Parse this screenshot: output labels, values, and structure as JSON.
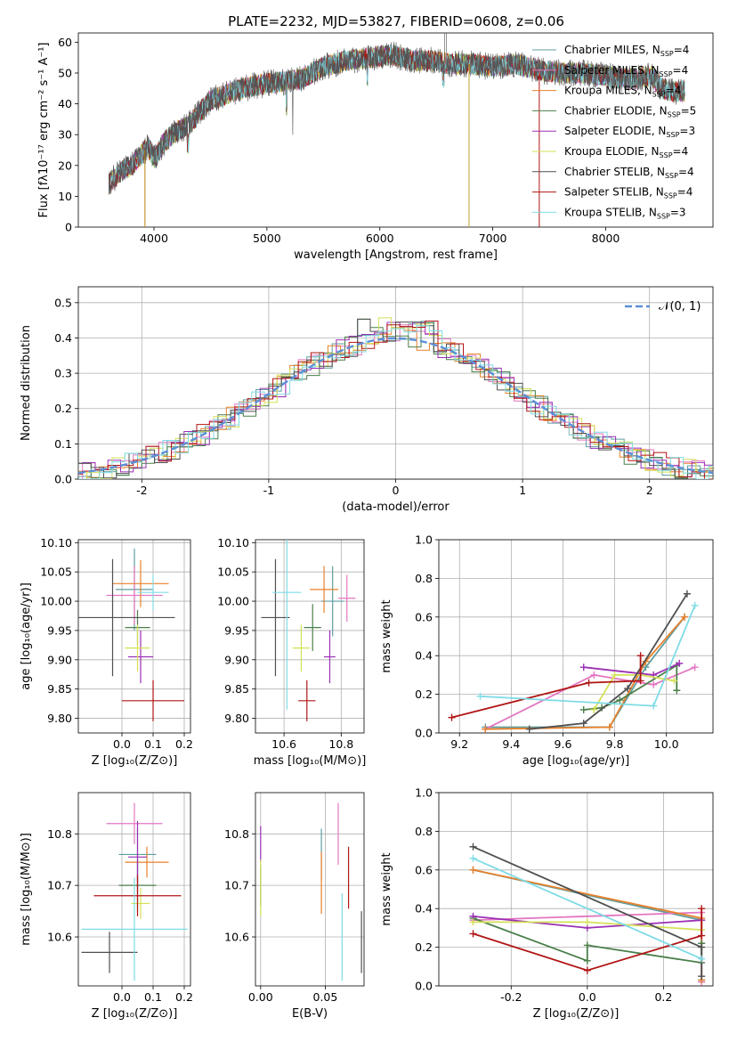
{
  "title": "PLATE=2232, MJD=53827, FIBERID=0608, z=0.06",
  "colors": {
    "Chabrier MILES": "#5f9ea0",
    "Salpeter MILES": "#e377c2",
    "Kroupa MILES": "#e8802a",
    "Chabrier ELODIE": "#4a7f4a",
    "Salpeter ELODIE": "#9b30b5",
    "Kroupa ELODIE": "#d4e157",
    "Chabrier STELIB": "#505050",
    "Salpeter STELIB": "#b01515",
    "Kroupa STELIB": "#7fdbe6",
    "gaussian": "#5b8fd6"
  },
  "chart_data": [
    {
      "id": "spectrum",
      "type": "line",
      "title": "PLATE=2232, MJD=53827, FIBERID=0608, z=0.06",
      "xlabel": "wavelength [Angstrom, rest frame]",
      "ylabel": "Flux [fλ10⁻¹⁷ erg cm⁻² s⁻¹ A⁻¹]",
      "xlim": [
        3330,
        8950
      ],
      "ylim": [
        0,
        63
      ],
      "xticks": [
        4000,
        5000,
        6000,
        7000,
        8000
      ],
      "yticks": [
        0,
        10,
        20,
        30,
        40,
        50,
        60
      ],
      "legend": [
        {
          "name": "Chabrier MILES",
          "nssp": "4"
        },
        {
          "name": "Salpeter MILES",
          "nssp": "4"
        },
        {
          "name": "Kroupa MILES",
          "nssp": "4"
        },
        {
          "name": "Chabrier ELODIE",
          "nssp": "5"
        },
        {
          "name": "Salpeter ELODIE",
          "nssp": "3"
        },
        {
          "name": "Kroupa ELODIE",
          "nssp": "4"
        },
        {
          "name": "Chabrier STELIB",
          "nssp": "4"
        },
        {
          "name": "Salpeter STELIB",
          "nssp": "4"
        },
        {
          "name": "Kroupa STELIB",
          "nssp": "3"
        }
      ],
      "legend_position": "right",
      "continuum": {
        "x": [
          3600,
          3700,
          3800,
          3900,
          3950,
          4000,
          4100,
          4200,
          4300,
          4400,
          4500,
          4700,
          4900,
          5100,
          5300,
          5500,
          5700,
          5900,
          6100,
          6300,
          6500,
          6600,
          6800,
          7000,
          7200,
          7400,
          7600,
          7800,
          8000,
          8200,
          8400,
          8500,
          8600,
          8700
        ],
        "y": [
          14,
          18,
          20,
          24,
          26,
          22,
          28,
          31,
          33,
          37,
          41,
          44,
          46,
          47,
          48,
          52,
          54,
          55,
          56,
          54,
          54,
          53,
          53,
          52,
          53,
          51,
          50,
          50,
          49,
          48,
          49,
          45,
          44,
          44
        ]
      }
    },
    {
      "id": "residuals",
      "type": "line",
      "xlabel": "(data-model)/error",
      "ylabel": "Normed distribution",
      "xlim": [
        -2.5,
        2.5
      ],
      "ylim": [
        0,
        0.545
      ],
      "xticks": [
        -2,
        -1,
        0,
        1,
        2
      ],
      "yticks": [
        0.0,
        0.1,
        0.2,
        0.3,
        0.4,
        0.5
      ],
      "legend": [
        "𝒩(0, 1)"
      ],
      "legend_position": "top-right"
    },
    {
      "id": "age_vs_Z",
      "type": "scatter",
      "xlabel": "Z [log₁₀(Z/Z⊙)]",
      "ylabel": "age  [log₁₀(age/yr)]",
      "xlim": [
        -0.14,
        0.22
      ],
      "ylim": [
        9.775,
        10.105
      ],
      "xticks": [
        0.0,
        0.1,
        0.2
      ],
      "yticks": [
        9.8,
        9.85,
        9.9,
        9.95,
        10.0,
        10.05,
        10.1
      ],
      "points": [
        {
          "series": "Chabrier MILES",
          "x": 0.04,
          "y": 10.02,
          "xerr": 0.06,
          "yerr": 0.07
        },
        {
          "series": "Salpeter MILES",
          "x": 0.04,
          "y": 10.01,
          "xerr": 0.09,
          "yerr": 0.05
        },
        {
          "series": "Kroupa MILES",
          "x": 0.06,
          "y": 10.03,
          "xerr": 0.09,
          "yerr": 0.04
        },
        {
          "series": "Chabrier ELODIE",
          "x": 0.05,
          "y": 9.955,
          "xerr": 0.04,
          "yerr": 0.03
        },
        {
          "series": "Salpeter ELODIE",
          "x": 0.06,
          "y": 9.905,
          "xerr": 0.04,
          "yerr": 0.045
        },
        {
          "series": "Kroupa ELODIE",
          "x": 0.05,
          "y": 9.92,
          "xerr": 0.04,
          "yerr": 0.04
        },
        {
          "series": "Chabrier STELIB",
          "x": -0.03,
          "y": 9.972,
          "xerr": 0.2,
          "yerr": 0.1
        },
        {
          "series": "Salpeter STELIB",
          "x": 0.1,
          "y": 9.83,
          "xerr": 0.1,
          "yerr": 0.035
        },
        {
          "series": "Kroupa STELIB",
          "x": 0.1,
          "y": 10.015,
          "xerr": 0.05,
          "yerr": 0.03
        }
      ]
    },
    {
      "id": "age_vs_mass",
      "type": "scatter",
      "xlabel": "mass [log₁₀(M/M⊙)]",
      "xlim": [
        10.5,
        10.88
      ],
      "ylim": [
        9.775,
        10.105
      ],
      "xticks": [
        10.6,
        10.8
      ],
      "yticks": [
        9.8,
        9.85,
        9.9,
        9.95,
        10.0,
        10.05,
        10.1
      ],
      "points": [
        {
          "series": "Chabrier MILES",
          "x": 10.77,
          "y": 10.0,
          "xerr": 0.04,
          "yerr": 0.06
        },
        {
          "series": "Salpeter MILES",
          "x": 10.82,
          "y": 10.005,
          "xerr": 0.03,
          "yerr": 0.04
        },
        {
          "series": "Kroupa MILES",
          "x": 10.74,
          "y": 10.02,
          "xerr": 0.05,
          "yerr": 0.04
        },
        {
          "series": "Chabrier ELODIE",
          "x": 10.7,
          "y": 9.955,
          "xerr": 0.03,
          "yerr": 0.04
        },
        {
          "series": "Salpeter ELODIE",
          "x": 10.76,
          "y": 9.905,
          "xerr": 0.02,
          "yerr": 0.045
        },
        {
          "series": "Kroupa ELODIE",
          "x": 10.66,
          "y": 9.92,
          "xerr": 0.03,
          "yerr": 0.04
        },
        {
          "series": "Chabrier STELIB",
          "x": 10.57,
          "y": 9.972,
          "xerr": 0.05,
          "yerr": 0.1
        },
        {
          "series": "Salpeter STELIB",
          "x": 10.68,
          "y": 9.83,
          "xerr": 0.03,
          "yerr": 0.035
        },
        {
          "series": "Kroupa STELIB",
          "x": 10.61,
          "y": 10.015,
          "xerr": 0.05,
          "yerr": 0.2
        }
      ]
    },
    {
      "id": "weight_vs_age",
      "type": "line",
      "xlabel": "age  [log₁₀(age/yr)]",
      "ylabel": "mass weight",
      "xlim": [
        9.12,
        10.18
      ],
      "ylim": [
        0,
        1.0
      ],
      "xticks": [
        9.2,
        9.4,
        9.6,
        9.8,
        10.0
      ],
      "yticks": [
        0.0,
        0.2,
        0.4,
        0.6,
        0.8,
        1.0
      ],
      "series": [
        {
          "name": "Chabrier MILES",
          "x": [
            9.3,
            9.78,
            9.92,
            10.07
          ],
          "y": [
            0.03,
            0.03,
            0.34,
            0.6
          ]
        },
        {
          "name": "Salpeter MILES",
          "x": [
            9.3,
            9.72,
            9.95,
            10.11
          ],
          "y": [
            0.02,
            0.3,
            0.25,
            0.34
          ]
        },
        {
          "name": "Kroupa MILES",
          "x": [
            9.3,
            9.78,
            9.92,
            10.07
          ],
          "y": [
            0.02,
            0.03,
            0.37,
            0.6
          ]
        },
        {
          "name": "Chabrier ELODIE",
          "x": [
            9.68,
            9.75,
            9.82,
            10.04,
            10.04
          ],
          "y": [
            0.12,
            0.13,
            0.17,
            0.35,
            0.22
          ]
        },
        {
          "name": "Salpeter ELODIE",
          "x": [
            9.68,
            9.95,
            10.05
          ],
          "y": [
            0.34,
            0.3,
            0.36
          ]
        },
        {
          "name": "Kroupa ELODIE",
          "x": [
            9.72,
            9.8,
            9.9,
            10.03
          ],
          "y": [
            0.12,
            0.3,
            0.3,
            0.27
          ]
        },
        {
          "name": "Chabrier STELIB",
          "x": [
            9.47,
            9.68,
            9.85,
            10.08
          ],
          "y": [
            0.02,
            0.05,
            0.23,
            0.72
          ]
        },
        {
          "name": "Salpeter STELIB",
          "x": [
            9.17,
            9.7,
            9.9,
            9.9
          ],
          "y": [
            0.08,
            0.26,
            0.27,
            0.4
          ]
        },
        {
          "name": "Kroupa STELIB",
          "x": [
            9.28,
            9.95,
            10.11
          ],
          "y": [
            0.19,
            0.14,
            0.66
          ]
        }
      ]
    },
    {
      "id": "mass_vs_Z",
      "type": "scatter",
      "xlabel": "Z [log₁₀(Z/Z⊙)]",
      "ylabel": "mass [log₁₀(M/M⊙)]",
      "xlim": [
        -0.14,
        0.22
      ],
      "ylim": [
        10.505,
        10.88
      ],
      "xticks": [
        0.0,
        0.1,
        0.2
      ],
      "yticks": [
        10.6,
        10.7,
        10.8
      ],
      "points": [
        {
          "series": "Chabrier MILES",
          "x": 0.05,
          "y": 10.76,
          "xerr": 0.06,
          "yerr": 0.05
        },
        {
          "series": "Salpeter MILES",
          "x": 0.04,
          "y": 10.82,
          "xerr": 0.09,
          "yerr": 0.04
        },
        {
          "series": "Kroupa MILES",
          "x": 0.08,
          "y": 10.745,
          "xerr": 0.07,
          "yerr": 0.03
        },
        {
          "series": "Chabrier ELODIE",
          "x": 0.05,
          "y": 10.7,
          "xerr": 0.06,
          "yerr": 0.05
        },
        {
          "series": "Salpeter ELODIE",
          "x": 0.05,
          "y": 10.755,
          "xerr": 0.03,
          "yerr": 0.07
        },
        {
          "series": "Kroupa ELODIE",
          "x": 0.06,
          "y": 10.665,
          "xerr": 0.03,
          "yerr": 0.03
        },
        {
          "series": "Chabrier STELIB",
          "x": -0.04,
          "y": 10.57,
          "xerr": 0.09,
          "yerr": 0.04
        },
        {
          "series": "Salpeter STELIB",
          "x": 0.05,
          "y": 10.68,
          "xerr": 0.14,
          "yerr": 0.04
        },
        {
          "series": "Kroupa STELIB",
          "x": 0.04,
          "y": 10.615,
          "xerr": 0.17,
          "yerr": 0.1
        }
      ]
    },
    {
      "id": "mass_vs_EBV",
      "type": "scatter",
      "xlabel": "E(B-V)",
      "xlim": [
        -0.004,
        0.08
      ],
      "ylim": [
        10.505,
        10.88
      ],
      "xticks": [
        0.0,
        0.05
      ],
      "yticks": [
        10.6,
        10.7,
        10.8
      ],
      "points": [
        {
          "series": "Chabrier MILES",
          "x": 0.047,
          "y": 10.76,
          "yerr": 0.05
        },
        {
          "series": "Salpeter MILES",
          "x": 0.06,
          "y": 10.8,
          "yerr": 0.06
        },
        {
          "series": "Kroupa MILES",
          "x": 0.047,
          "y": 10.705,
          "yerr": 0.06
        },
        {
          "series": "Chabrier ELODIE",
          "x": 0.0,
          "y": 10.7,
          "yerr": 0.04
        },
        {
          "series": "Salpeter ELODIE",
          "x": 0.0,
          "y": 10.78,
          "yerr": 0.035
        },
        {
          "series": "Kroupa ELODIE",
          "x": 0.0,
          "y": 10.695,
          "yerr": 0.055
        },
        {
          "series": "Chabrier STELIB",
          "x": 0.078,
          "y": 10.59,
          "yerr": 0.06
        },
        {
          "series": "Salpeter STELIB",
          "x": 0.068,
          "y": 10.715,
          "yerr": 0.06
        },
        {
          "series": "Kroupa STELIB",
          "x": 0.063,
          "y": 10.6,
          "yerr": 0.085
        }
      ]
    },
    {
      "id": "weight_vs_Z",
      "type": "line",
      "xlabel": "Z [log₁₀(Z/Z⊙)]",
      "ylabel": "mass weight",
      "xlim": [
        -0.39,
        0.33
      ],
      "ylim": [
        0,
        1.0
      ],
      "xticks": [
        -0.2,
        0.0,
        0.2
      ],
      "yticks": [
        0.0,
        0.2,
        0.4,
        0.6,
        0.8,
        1.0
      ],
      "series": [
        {
          "name": "Chabrier MILES",
          "x": [
            -0.3,
            0.3,
            0.3
          ],
          "y": [
            0.6,
            0.34,
            0.03
          ]
        },
        {
          "name": "Salpeter MILES",
          "x": [
            -0.3,
            0.3,
            0.3
          ],
          "y": [
            0.34,
            0.38,
            0.02
          ]
        },
        {
          "name": "Kroupa MILES",
          "x": [
            -0.3,
            0.3,
            0.3
          ],
          "y": [
            0.6,
            0.35,
            0.03
          ]
        },
        {
          "name": "Chabrier ELODIE",
          "x": [
            -0.3,
            0.0,
            0.0,
            0.3,
            0.3
          ],
          "y": [
            0.35,
            0.13,
            0.21,
            0.12,
            0.22
          ]
        },
        {
          "name": "Salpeter ELODIE",
          "x": [
            -0.3,
            0.0,
            0.3
          ],
          "y": [
            0.36,
            0.3,
            0.34
          ]
        },
        {
          "name": "Kroupa ELODIE",
          "x": [
            -0.3,
            0.0,
            0.3
          ],
          "y": [
            0.33,
            0.33,
            0.29
          ]
        },
        {
          "name": "Chabrier STELIB",
          "x": [
            -0.3,
            0.3,
            0.3
          ],
          "y": [
            0.72,
            0.2,
            0.05
          ]
        },
        {
          "name": "Salpeter STELIB",
          "x": [
            -0.3,
            0.0,
            0.3,
            0.3
          ],
          "y": [
            0.27,
            0.08,
            0.26,
            0.4
          ]
        },
        {
          "name": "Kroupa STELIB",
          "x": [
            -0.3,
            0.3
          ],
          "y": [
            0.66,
            0.14
          ]
        }
      ]
    }
  ]
}
